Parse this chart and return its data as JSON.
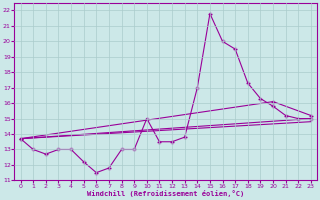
{
  "xlabel": "Windchill (Refroidissement éolien,°C)",
  "bg_color": "#cce8e8",
  "line_color": "#990099",
  "grid_color": "#aacccc",
  "xlim": [
    -0.5,
    23.5
  ],
  "ylim": [
    11,
    22.5
  ],
  "yticks": [
    11,
    12,
    13,
    14,
    15,
    16,
    17,
    18,
    19,
    20,
    21,
    22
  ],
  "xticks": [
    0,
    1,
    2,
    3,
    4,
    5,
    6,
    7,
    8,
    9,
    10,
    11,
    12,
    13,
    14,
    15,
    16,
    17,
    18,
    19,
    20,
    21,
    22,
    23
  ],
  "line1_x": [
    0,
    1,
    2,
    3,
    4,
    5,
    6,
    7,
    8,
    9,
    10,
    11,
    12,
    13,
    14,
    15,
    16,
    17,
    18,
    19,
    20,
    21,
    22,
    23
  ],
  "line1_y": [
    13.7,
    13.0,
    12.7,
    13.0,
    13.0,
    12.2,
    11.5,
    11.8,
    13.0,
    13.0,
    15.0,
    13.5,
    13.5,
    13.8,
    17.0,
    21.8,
    20.0,
    19.5,
    17.3,
    16.3,
    15.8,
    15.2,
    15.0,
    15.0
  ],
  "line2_x": [
    0,
    23
  ],
  "line2_y": [
    13.7,
    15.0
  ],
  "line3_x": [
    0,
    23
  ],
  "line3_y": [
    13.7,
    14.8
  ],
  "line4_x": [
    0,
    20,
    23
  ],
  "line4_y": [
    13.7,
    16.1,
    15.2
  ]
}
